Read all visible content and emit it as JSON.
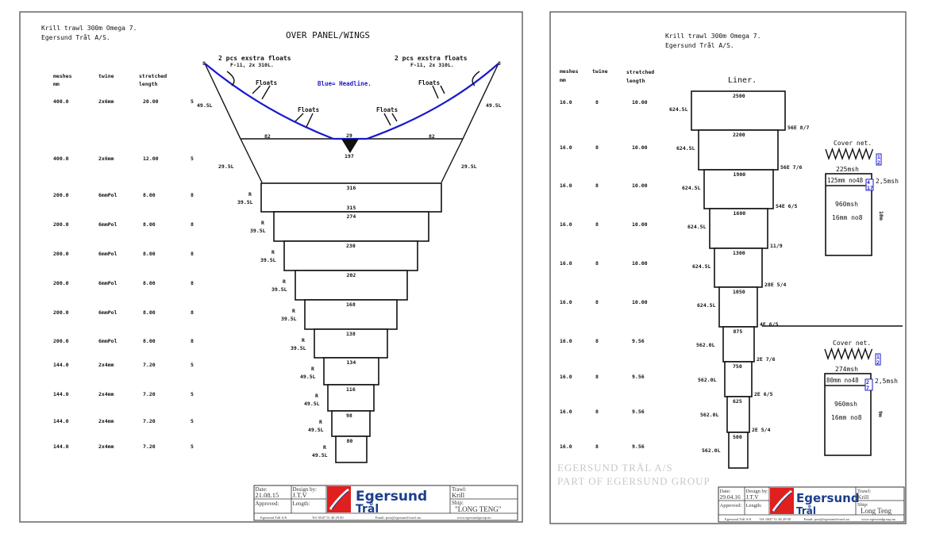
{
  "left": {
    "title_line1": "Krill trawl 300m Omega 7.",
    "title_line2": "Egersund Trål A/S.",
    "panel_title": "OVER PANEL/WINGS",
    "headers": {
      "meshes": "meshes",
      "mm": "mm",
      "twine": "twine",
      "stretched": "stretched",
      "length": "length"
    },
    "rows": [
      {
        "meshes": "400.0",
        "twine": "2x6mm",
        "stretched": "20.00",
        "count": "5"
      },
      {
        "meshes": "400.0",
        "twine": "2x6mm",
        "stretched": "12.00",
        "count": "5"
      },
      {
        "meshes": "200.0",
        "twine": "6mmPol",
        "stretched": "8.00",
        "count": "8"
      },
      {
        "meshes": "200.0",
        "twine": "6mmPol",
        "stretched": "8.00",
        "count": "8"
      },
      {
        "meshes": "200.0",
        "twine": "6mmPol",
        "stretched": "8.00",
        "count": "8"
      },
      {
        "meshes": "200.0",
        "twine": "6mmPol",
        "stretched": "8.00",
        "count": "8"
      },
      {
        "meshes": "200.0",
        "twine": "6mmPol",
        "stretched": "8.00",
        "count": "8"
      },
      {
        "meshes": "200.0",
        "twine": "6mmPol",
        "stretched": "8.00",
        "count": "8"
      },
      {
        "meshes": "144.0",
        "twine": "2x4mm",
        "stretched": "7.20",
        "count": "5"
      },
      {
        "meshes": "144.0",
        "twine": "2x4mm",
        "stretched": "7.20",
        "count": "5"
      },
      {
        "meshes": "144.0",
        "twine": "2x4mm",
        "stretched": "7.20",
        "count": "5"
      },
      {
        "meshes": "144.0",
        "twine": "2x4mm",
        "stretched": "7.20",
        "count": "5"
      }
    ],
    "wing": {
      "extra_floats": "2 pcs exstra floats",
      "extra_floats_spec": "F-11, 2x 310L.",
      "floats": "Floats",
      "headline_note": "Blue= Headline.",
      "corner": "8",
      "side_upper": "49.5L",
      "side_lower": "29.5L",
      "wing_left": "82",
      "center": "29",
      "wing_right": "82",
      "bottom": "197"
    },
    "sections": [
      {
        "top": "316",
        "bottom": "315",
        "side": "R",
        "taper": "39.5L"
      },
      {
        "top": "274",
        "side": "R",
        "taper": "39.5L"
      },
      {
        "top": "230",
        "side": "R",
        "taper": "39.5L"
      },
      {
        "top": "202",
        "side": "R",
        "taper": "39.5L"
      },
      {
        "top": "168",
        "side": "R",
        "taper": "39.5L"
      },
      {
        "top": "138",
        "side": "R",
        "taper": "39.5L"
      },
      {
        "top": "134",
        "side": "R",
        "taper": "49.5L"
      },
      {
        "top": "116",
        "side": "R",
        "taper": "49.5L"
      },
      {
        "top": "98",
        "side": "R",
        "taper": "49.5L"
      },
      {
        "top": "80",
        "side": "R",
        "taper": "49.5L"
      }
    ],
    "title_block": {
      "date_label": "Date:",
      "date": "21.08.15",
      "design_label": "Design by:",
      "design": "J.T.V",
      "approved_label": "Approved:",
      "length_label": "Length:",
      "company": "Egersund",
      "company2": "Trål",
      "trawl_label": "Trawl:",
      "trawl": "Krill",
      "ship_label": "Ship:",
      "ship": "\"LONG TENG\"",
      "footer_company": "Egersund Trål A/S",
      "footer_tel": "Tel: 0047 51 46 29 00",
      "footer_email": "Email: post@egersund-trawl.no",
      "footer_web": "www.egersundgroup.no"
    }
  },
  "right": {
    "title_line1": "Krill trawl 300m Omega 7.",
    "title_line2": "Egersund Trål A/S.",
    "panel_title": "Liner.",
    "headers": {
      "meshes": "meshes",
      "mm": "mm",
      "twine": "twine",
      "stretched": "stretched",
      "length": "length"
    },
    "rows": [
      {
        "meshes": "16.0",
        "twine": "8",
        "stretched": "10.00"
      },
      {
        "meshes": "16.0",
        "twine": "8",
        "stretched": "10.00"
      },
      {
        "meshes": "16.0",
        "twine": "8",
        "stretched": "10.00"
      },
      {
        "meshes": "16.0",
        "twine": "8",
        "stretched": "10.00"
      },
      {
        "meshes": "16.0",
        "twine": "8",
        "stretched": "10.00"
      },
      {
        "meshes": "16.0",
        "twine": "8",
        "stretched": "10.00"
      },
      {
        "meshes": "16.0",
        "twine": "8",
        "stretched": "9.56"
      },
      {
        "meshes": "16.0",
        "twine": "8",
        "stretched": "9.56"
      },
      {
        "meshes": "16.0",
        "twine": "8",
        "stretched": "9.56"
      },
      {
        "meshes": "16.0",
        "twine": "8",
        "stretched": "9.56"
      }
    ],
    "sections": [
      {
        "top": "2500",
        "taper": "624.5L",
        "cut": "56E 8/7"
      },
      {
        "top": "2200",
        "taper": "624.5L",
        "cut": "56E 7/6"
      },
      {
        "top": "1900",
        "taper": "624.5L",
        "cut": "54E 6/5"
      },
      {
        "top": "1600",
        "taper": "624.5L",
        "cut": "11/9"
      },
      {
        "top": "1300",
        "taper": "624.5L",
        "cut": "28E 5/4"
      },
      {
        "top": "1050",
        "taper": "624.5L",
        "cut": "4E 6/5"
      },
      {
        "top": "875",
        "taper": "562.0L",
        "cut": "2E 7/6"
      },
      {
        "top": "750",
        "taper": "562.0L",
        "cut": "2E 6/5"
      },
      {
        "top": "625",
        "taper": "562.0L",
        "cut": "2E 5/4"
      },
      {
        "top": "500",
        "taper": "562.0L",
        "cut": ""
      }
    ],
    "cover_nets": [
      {
        "title": "Cover net.",
        "ratio_a": "1",
        "ratio_b": "2",
        "top_meshes": "225msh",
        "strip": "125mm no48",
        "strip_a": "4",
        "strip_b": "17",
        "strip_depth": "2,5msh",
        "body_meshes": "960msh",
        "body_twine": "16mm no8",
        "length": "10m"
      },
      {
        "title": "Cover net.",
        "ratio_a": "1",
        "ratio_b": "2",
        "top_meshes": "274msh",
        "strip": "80mm no48",
        "strip_a": "2",
        "strip_b": "7",
        "strip_depth": "2,5msh",
        "body_meshes": "960msh",
        "body_twine": "16mm no8",
        "length": "9m"
      }
    ],
    "watermark_line1": "EGERSUND TRÅL A/S",
    "watermark_line2": "PART OF EGERSUND GROUP",
    "title_block": {
      "date_label": "Date:",
      "date": "29.04.16",
      "design_label": "Design by:",
      "design": "J.T.V",
      "approved_label": "Approved:",
      "length_label": "Length:",
      "company": "Egersund",
      "company2": "Trål",
      "trawl_label": "Trawl:",
      "trawl": "Krill",
      "ship_label": "Ship:",
      "ship": "Long Teng",
      "footer_company": "Egersund Trål A/S",
      "footer_tel": "Tel: 0047 51 46 29 00",
      "footer_email": "Email: post@egersund-trawl.no",
      "footer_web": "www.egersundgroup.no"
    }
  },
  "colors": {
    "headline": "#1a1acc",
    "logo_red": "#e01f1f",
    "logo_blue": "#1c3f8c"
  }
}
